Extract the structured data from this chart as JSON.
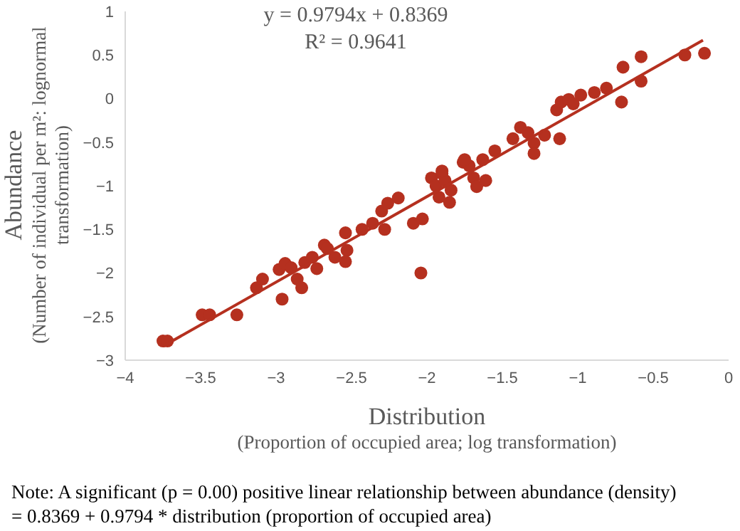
{
  "chart_data": {
    "type": "scatter",
    "xlabel": "Distribution\n(Proportion of occupied area; log transformation)",
    "ylabel": "Abundance\n(Number of individual per m²: lognormal transformation)",
    "xlim": [
      -4,
      0
    ],
    "xticks": [
      -4,
      -3.5,
      -3,
      -2.5,
      -2,
      -1.5,
      -1,
      -0.5,
      0
    ],
    "ylim": [
      -3,
      1
    ],
    "yticks": [
      -3,
      -2.5,
      -2,
      -1.5,
      -1,
      -0.5,
      0,
      0.5,
      1
    ],
    "marker": "circle",
    "annotations": [
      "y = 0.9794x + 0.8369",
      "R² = 0.9641",
      "Note: A significant (p = 0.00) positive linear relationship between abundance (density) = 0.8369 + 0.9794 * distribution (proportion of occupied area)"
    ],
    "series": [
      {
        "color": "#b5301f",
        "x": [
          -3.75,
          -3.72,
          -3.49,
          -3.44,
          -3.26,
          -3.13,
          -3.09,
          -2.96,
          -2.98,
          -2.94,
          -2.9,
          -2.86,
          -2.83,
          -2.81,
          -2.76,
          -2.73,
          -2.68,
          -2.66,
          -2.61,
          -2.54,
          -2.53,
          -2.54,
          -2.43,
          -2.36,
          -2.3,
          -2.28,
          -2.26,
          -2.19,
          -2.09,
          -2.03,
          -2.04,
          -1.97,
          -1.94,
          -1.9,
          -1.88,
          -1.92,
          -1.84,
          -1.85,
          -1.76,
          -1.72,
          -1.69,
          -1.67,
          -1.61,
          -1.63,
          -1.9,
          -1.75,
          -1.55,
          -1.43,
          -1.38,
          -1.33,
          -1.29,
          -1.29,
          -1.22,
          -1.12,
          -1.14,
          -1.11,
          -1.06,
          -1.03,
          -0.98,
          -0.89,
          -0.81,
          -0.71,
          -0.7,
          -0.58,
          -0.58,
          -0.29,
          -0.16
        ],
        "values": [
          -2.78,
          -2.78,
          -2.48,
          -2.48,
          -2.48,
          -2.17,
          -2.07,
          -2.3,
          -1.96,
          -1.89,
          -1.94,
          -2.07,
          -2.17,
          -1.88,
          -1.82,
          -1.95,
          -1.68,
          -1.72,
          -1.82,
          -1.54,
          -1.74,
          -1.87,
          -1.5,
          -1.43,
          -1.29,
          -1.5,
          -1.2,
          -1.14,
          -1.43,
          -1.38,
          -2,
          -0.91,
          -1,
          -0.86,
          -0.94,
          -1.13,
          -1.05,
          -1.19,
          -0.73,
          -0.77,
          -0.91,
          -1.01,
          -0.94,
          -0.7,
          -0.83,
          -0.7,
          -0.6,
          -0.46,
          -0.33,
          -0.39,
          -0.51,
          -0.63,
          -0.42,
          -0.46,
          -0.13,
          -0.04,
          -0.01,
          -0.06,
          0.04,
          0.07,
          0.12,
          -0.04,
          0.36,
          0.2,
          0.48,
          0.5,
          0.52
        ]
      },
      {
        "type": "line",
        "marker": "none",
        "color": "#b5301f",
        "x": [
          -3.75,
          -0.17
        ],
        "values": [
          -2.84,
          0.67
        ]
      }
    ]
  }
}
